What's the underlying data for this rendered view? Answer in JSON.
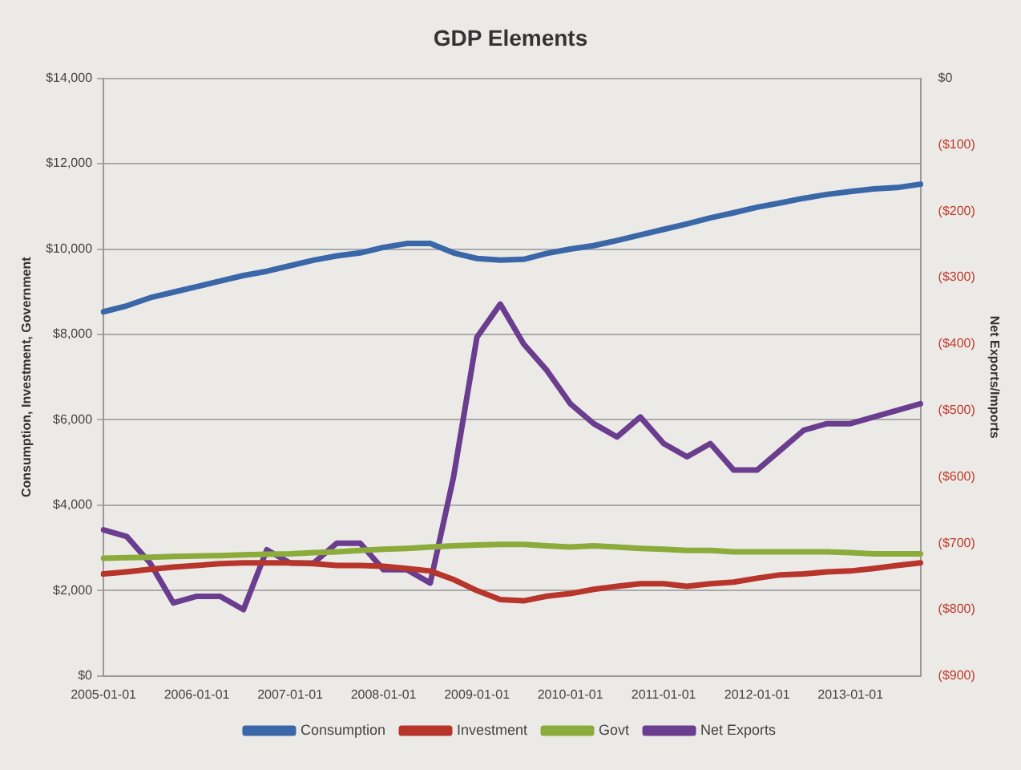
{
  "chart_data": {
    "type": "line",
    "title": "GDP Elements",
    "ylabel": "Consumption, Investment, Government",
    "y2label": "Net Exports/Imports",
    "categories": [
      "2005-01-01",
      null,
      null,
      null,
      "2006-01-01",
      null,
      null,
      null,
      "2007-01-01",
      null,
      null,
      null,
      "2008-01-01",
      null,
      null,
      null,
      "2009-01-01",
      null,
      null,
      null,
      "2010-01-01",
      null,
      null,
      null,
      "2011-01-01",
      null,
      null,
      null,
      "2012-01-01",
      null,
      null,
      null,
      "2013-01-01",
      null,
      null,
      null
    ],
    "series": [
      {
        "name": "Consumption",
        "color": "#3a67a8",
        "values": [
          8530,
          8670,
          8860,
          8990,
          9120,
          9250,
          9380,
          9480,
          9610,
          9740,
          9840,
          9910,
          10040,
          10130,
          10130,
          9910,
          9780,
          9740,
          9760,
          9900,
          10000,
          10080,
          10200,
          10330,
          10460,
          10590,
          10730,
          10850,
          10980,
          11080,
          11190,
          11280,
          11350,
          11410,
          11440,
          11520
        ]
      },
      {
        "name": "Investment",
        "color": "#b8352c",
        "values": [
          2390,
          2440,
          2500,
          2550,
          2590,
          2630,
          2650,
          2650,
          2650,
          2630,
          2590,
          2590,
          2570,
          2520,
          2460,
          2260,
          2000,
          1790,
          1760,
          1870,
          1930,
          2030,
          2100,
          2160,
          2160,
          2100,
          2160,
          2200,
          2290,
          2370,
          2390,
          2440,
          2460,
          2520,
          2590,
          2650
        ]
      },
      {
        "name": "Govt",
        "color": "#8bab3a",
        "values": [
          2760,
          2770,
          2780,
          2800,
          2810,
          2820,
          2840,
          2850,
          2860,
          2890,
          2910,
          2940,
          2970,
          2990,
          3020,
          3050,
          3070,
          3080,
          3080,
          3050,
          3020,
          3050,
          3020,
          2990,
          2970,
          2940,
          2940,
          2910,
          2910,
          2910,
          2910,
          2910,
          2890,
          2860,
          2860,
          2860
        ]
      },
      {
        "name": "Net Exports",
        "color": "#6a3d8f",
        "axis": "y2",
        "values": [
          -680,
          -690,
          -730,
          -790,
          -780,
          -780,
          -800,
          -710,
          -730,
          -730,
          -700,
          -700,
          -740,
          -740,
          -760,
          -600,
          -390,
          -340,
          -400,
          -440,
          -490,
          -520,
          -540,
          -510,
          -550,
          -570,
          -550,
          -590,
          -590,
          -560,
          -530,
          -520,
          -520,
          -510,
          -500,
          -490
        ]
      }
    ],
    "ylim": [
      0,
      14000
    ],
    "yticks": [
      {
        "value": 0,
        "label": "$0"
      },
      {
        "value": 2000,
        "label": "$2,000"
      },
      {
        "value": 4000,
        "label": "$4,000"
      },
      {
        "value": 6000,
        "label": "$6,000"
      },
      {
        "value": 8000,
        "label": "$8,000"
      },
      {
        "value": 10000,
        "label": "$10,000"
      },
      {
        "value": 12000,
        "label": "$12,000"
      },
      {
        "value": 14000,
        "label": "$14,000"
      }
    ],
    "y2lim": [
      -900,
      0
    ],
    "y2ticks": [
      {
        "value": -900,
        "label": "($900)"
      },
      {
        "value": -800,
        "label": "($800)"
      },
      {
        "value": -700,
        "label": "($700)"
      },
      {
        "value": -600,
        "label": "($600)"
      },
      {
        "value": -500,
        "label": "($500)"
      },
      {
        "value": -400,
        "label": "($400)"
      },
      {
        "value": -300,
        "label": "($300)"
      },
      {
        "value": -200,
        "label": "($200)"
      },
      {
        "value": -100,
        "label": "($100)"
      },
      {
        "value": 0,
        "label": "$0"
      }
    ],
    "grid": "y",
    "legend": "bottom",
    "marker": "none",
    "line_style": "solid"
  }
}
